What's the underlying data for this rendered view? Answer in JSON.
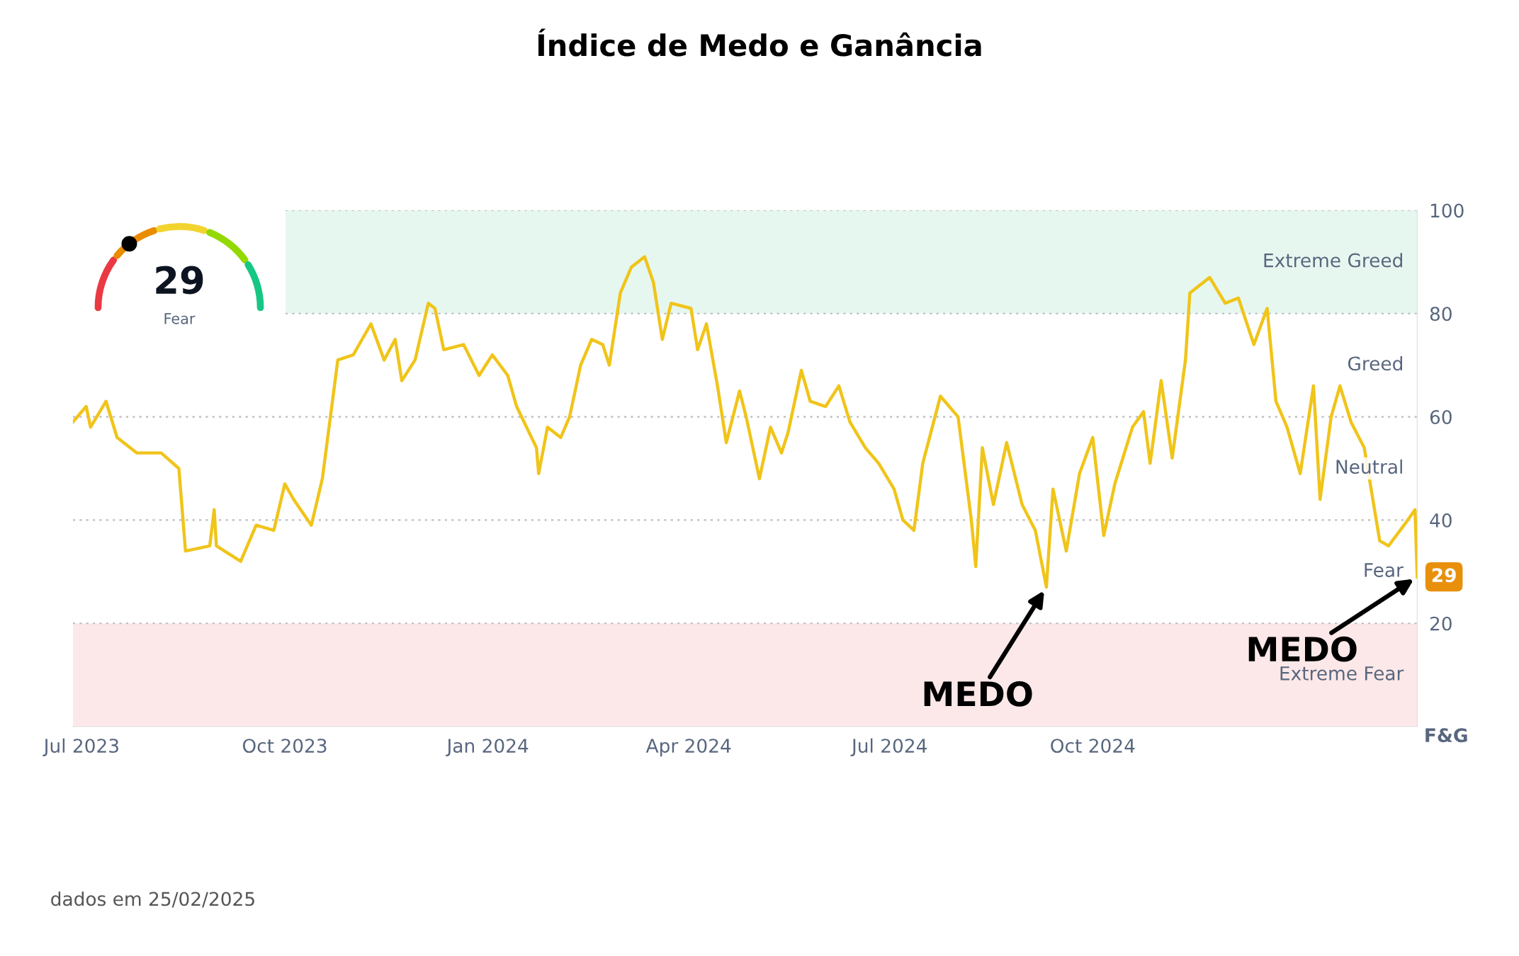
{
  "chart_data": {
    "type": "line",
    "title": "Índice de Medo e Ganância",
    "ylabel": "F&G",
    "x": [
      "2023-06-27",
      "2023-07-03",
      "2023-07-05",
      "2023-07-12",
      "2023-07-17",
      "2023-07-26",
      "2023-08-06",
      "2023-08-14",
      "2023-08-17",
      "2023-08-28",
      "2023-08-30",
      "2023-08-31",
      "2023-09-11",
      "2023-09-18",
      "2023-09-26",
      "2023-10-01",
      "2023-10-05",
      "2023-10-13",
      "2023-10-18",
      "2023-10-25",
      "2023-11-01",
      "2023-11-09",
      "2023-11-15",
      "2023-11-20",
      "2023-11-23",
      "2023-11-29",
      "2023-12-05",
      "2023-12-08",
      "2023-12-12",
      "2023-12-21",
      "2023-12-28",
      "2024-01-03",
      "2024-01-10",
      "2024-01-14",
      "2024-01-23",
      "2024-01-24",
      "2024-01-28",
      "2024-02-03",
      "2024-02-07",
      "2024-02-12",
      "2024-02-17",
      "2024-02-22",
      "2024-02-25",
      "2024-03-01",
      "2024-03-06",
      "2024-03-12",
      "2024-03-16",
      "2024-03-20",
      "2024-03-24",
      "2024-04-02",
      "2024-04-05",
      "2024-04-09",
      "2024-04-14",
      "2024-04-18",
      "2024-04-24",
      "2024-04-27",
      "2024-05-03",
      "2024-05-08",
      "2024-05-13",
      "2024-05-16",
      "2024-05-22",
      "2024-05-26",
      "2024-06-02",
      "2024-06-08",
      "2024-06-13",
      "2024-06-20",
      "2024-06-26",
      "2024-07-03",
      "2024-07-07",
      "2024-07-12",
      "2024-07-16",
      "2024-07-24",
      "2024-08-01",
      "2024-08-07",
      "2024-08-09",
      "2024-08-12",
      "2024-08-17",
      "2024-08-23",
      "2024-08-30",
      "2024-09-05",
      "2024-09-10",
      "2024-09-13",
      "2024-09-19",
      "2024-09-25",
      "2024-10-01",
      "2024-10-06",
      "2024-10-11",
      "2024-10-19",
      "2024-10-24",
      "2024-10-27",
      "2024-11-01",
      "2024-11-06",
      "2024-11-12",
      "2024-11-14",
      "2024-11-23",
      "2024-11-30",
      "2024-12-06",
      "2024-12-13",
      "2024-12-19",
      "2024-12-23",
      "2024-12-28",
      "2025-01-03",
      "2025-01-09",
      "2025-01-12",
      "2025-01-17",
      "2025-01-21",
      "2025-01-26",
      "2025-02-01",
      "2025-02-08",
      "2025-02-12",
      "2025-02-19",
      "2025-02-24",
      "2025-02-25"
    ],
    "series": [
      {
        "color": "#f0c419",
        "values": [
          59,
          62,
          58,
          63,
          56,
          53,
          53,
          50,
          34,
          35,
          42,
          35,
          32,
          39,
          38,
          47,
          44,
          39,
          48,
          71,
          72,
          78,
          71,
          75,
          67,
          71,
          82,
          81,
          73,
          74,
          68,
          72,
          68,
          62,
          54,
          49,
          58,
          56,
          60,
          70,
          75,
          74,
          70,
          84,
          89,
          91,
          86,
          75,
          82,
          81,
          73,
          78,
          66,
          55,
          65,
          60,
          48,
          58,
          53,
          57,
          69,
          63,
          62,
          66,
          59,
          54,
          51,
          46,
          40,
          38,
          51,
          64,
          60,
          40,
          31,
          54,
          43,
          55,
          43,
          38,
          27,
          46,
          34,
          49,
          56,
          37,
          47,
          58,
          61,
          51,
          67,
          52,
          71,
          84,
          87,
          82,
          83,
          74,
          81,
          63,
          58,
          49,
          66,
          44,
          60,
          66,
          59,
          54,
          36,
          35,
          39,
          42,
          29
        ]
      }
    ],
    "ylim": [
      0,
      100
    ],
    "yticks": [
      20,
      40,
      60,
      80,
      100
    ],
    "xlim": [
      "2023-06-27",
      "2025-02-25"
    ],
    "xticks": [
      {
        "value": "2023-07-01",
        "label": "Jul 2023"
      },
      {
        "value": "2023-10-01",
        "label": "Oct 2023"
      },
      {
        "value": "2024-01-01",
        "label": "Jan 2024"
      },
      {
        "value": "2024-04-01",
        "label": "Apr 2024"
      },
      {
        "value": "2024-07-01",
        "label": "Jul 2024"
      },
      {
        "value": "2024-10-01",
        "label": "Oct 2024"
      }
    ],
    "grid": "y",
    "line_style": "solid",
    "legend": false,
    "bands": [
      {
        "axis": "y",
        "from": 80,
        "to": 100,
        "label": "Extreme Greed",
        "color": "#e6f7f0"
      },
      {
        "axis": "y",
        "from": 0,
        "to": 20,
        "label": "Extreme Fear",
        "color": "#fce8e8"
      }
    ],
    "annotations": [
      {
        "text": "29",
        "x": "2025-02-25",
        "y": 29
      },
      {
        "text": "MEDO",
        "x": "2024-09-10",
        "y": 27
      },
      {
        "text": "MEDO",
        "x": "2025-02-25",
        "y": 29
      },
      {
        "text": "Fear",
        "x": "2025-02-25",
        "y": 30
      },
      "29",
      "Fear",
      "dados em 25/02/2025",
      "Greed",
      "Neutral"
    ]
  }
}
